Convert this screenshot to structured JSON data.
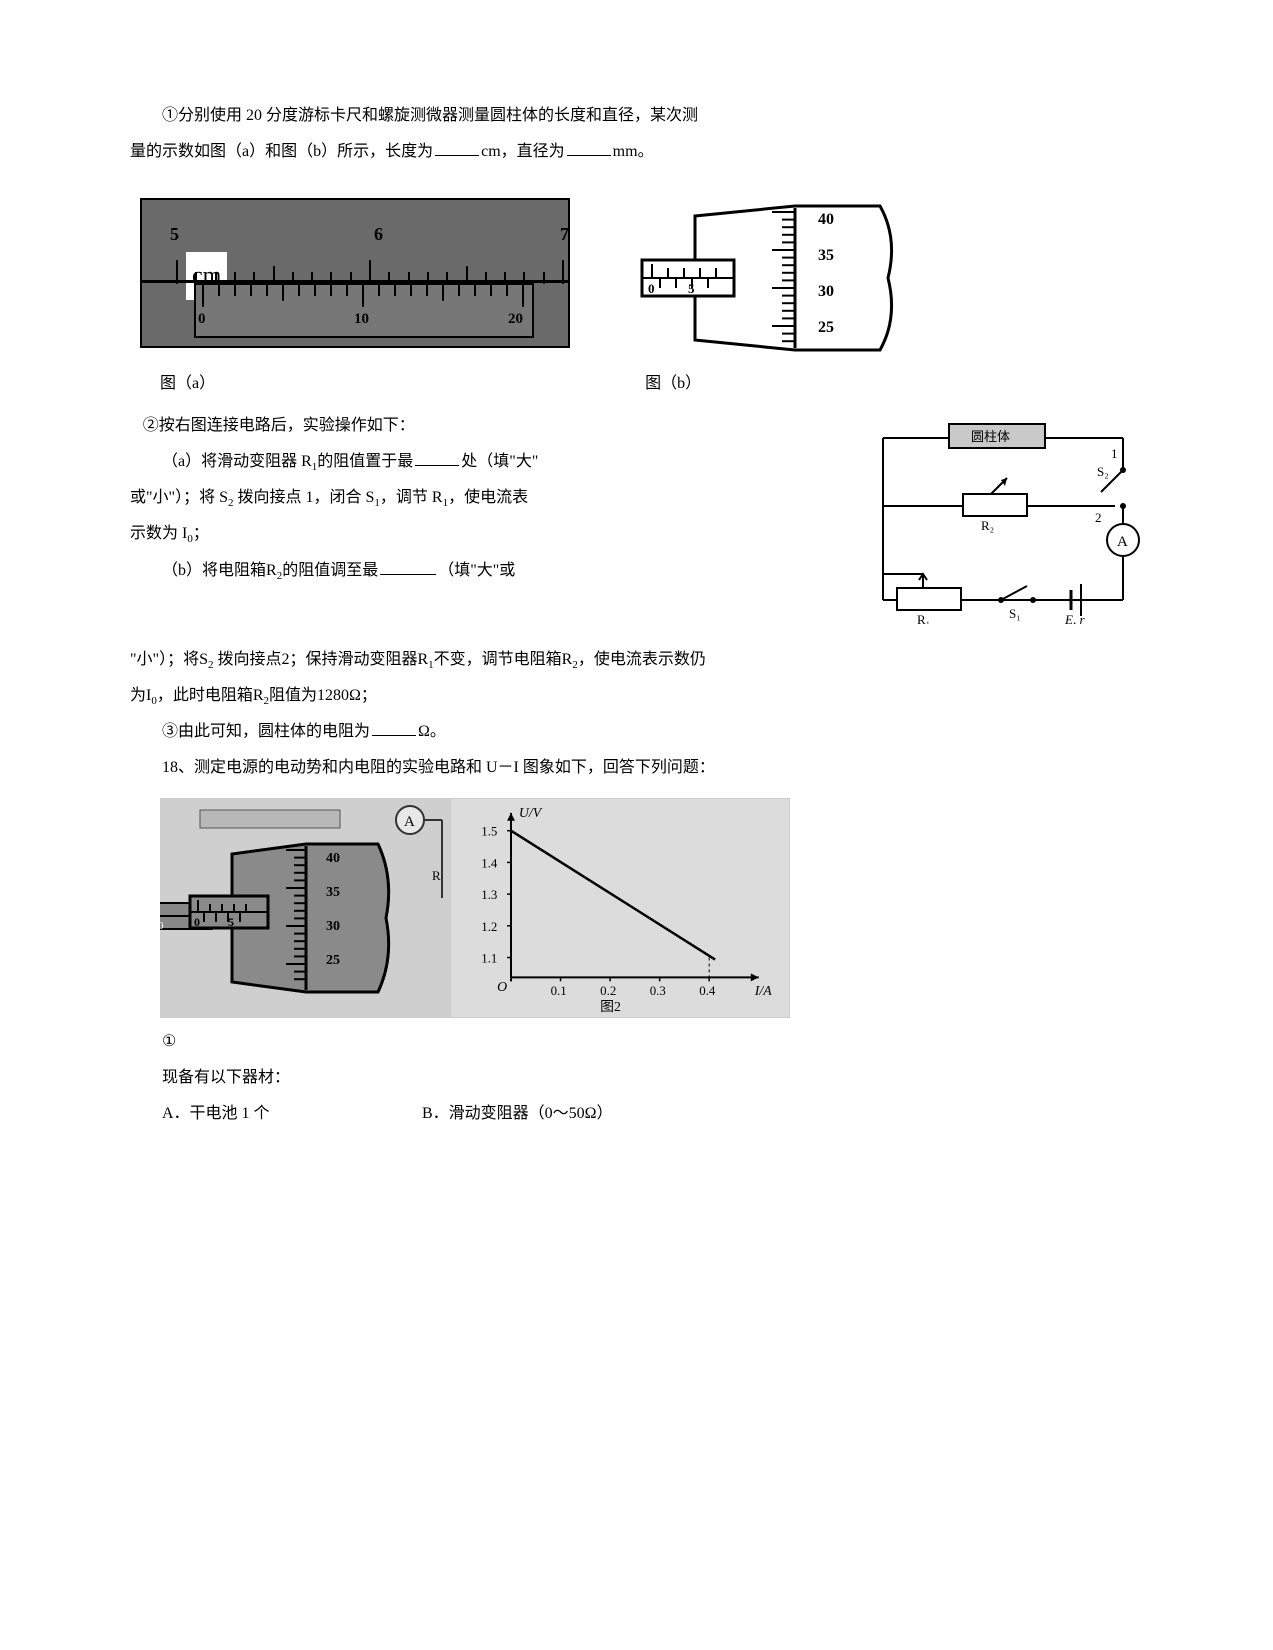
{
  "q1": {
    "line1_pre": "①分别使用 20 分度游标卡尺和螺旋测微器测量圆柱体的长度和直径，某次测",
    "line2_pre": "量的示数如图（a）和图（b）所示，长度为",
    "line2_mid": "cm，直径为",
    "line2_end": "mm。"
  },
  "fig_a": {
    "label": "图（a）",
    "cm_label": "cm",
    "main_numbers": [
      "5",
      "6",
      "7"
    ],
    "main_num_x": [
      28,
      232,
      420
    ],
    "main_tick_majors_x": [
      34,
      238,
      420
    ],
    "main_tick_minors_step": 20.4,
    "main_tick_height_major": 22,
    "main_tick_height_minor": 12,
    "vernier_numbers": [
      "0",
      "10",
      "20"
    ],
    "vernier_num_x": [
      2,
      160,
      315
    ],
    "vernier_tick_count": 21,
    "vernier_tick_step": 16,
    "vernier_tick_start": 6,
    "vernier_tick_height_major": 20,
    "vernier_tick_height_minor": 12,
    "bg": "#6a6a6a",
    "tick_color": "#000000"
  },
  "fig_b": {
    "label": "图（b）",
    "thimble_values": [
      "40",
      "35",
      "30",
      "25"
    ],
    "sleeve_major": "0",
    "sleeve_minor": "5",
    "stroke": "#000000",
    "bg": "#ffffff"
  },
  "q2": {
    "intro": "②按右图连接电路后，实验操作如下：",
    "a_pre": "（a）将滑动变阻器 R",
    "a_sub1": "1",
    "a_mid1": "的阻值置于最",
    "a_mid2": "处（填\"大\"",
    "a_line2_pre": "或\"小\"）；将 S",
    "a_sub2": "2",
    "a_line2_mid": " 拨向接点 1，闭合 S",
    "a_sub3": "1",
    "a_line2_mid2": "，调节 R",
    "a_sub4": "1",
    "a_line2_end": "，使电流表",
    "a_line3_pre": "示数为 I",
    "a_sub5": "0",
    "a_line3_end": "；",
    "b_pre": "（b）将电阻箱R",
    "b_sub1": "2",
    "b_mid1": "的阻值调至最",
    "b_mid2": "（填\"大\"或",
    "b_line2_pre": "\"小\"）；将S",
    "b_sub2": "2",
    "b_line2_mid1": " 拨向接点2；保持滑动变阻器R",
    "b_sub3": "1",
    "b_line2_mid2": "不变，调节电阻箱R",
    "b_sub4": "2",
    "b_line2_end": "，使电流表示数仍",
    "b_line3_pre": "为I",
    "b_sub5": "0",
    "b_line3_mid": "，此时电阻箱R",
    "b_sub6": "2",
    "b_line3_end": "阻值为1280Ω；"
  },
  "circuit": {
    "cylinder_label": "圆柱体",
    "node1": "1",
    "node2": "2",
    "S2": "S₂",
    "S1": "S₁",
    "R2": "R₂",
    "R1": "R₁",
    "A": "A",
    "Er": "E, r",
    "stroke": "#000000"
  },
  "q3": {
    "pre": "③由此可知，圆柱体的电阻为",
    "end": "Ω。"
  },
  "q18": {
    "intro": "18、测定电源的电动势和内电阻的实验电路和 U－I 图象如下，回答下列问题：",
    "left": {
      "A": "A",
      "R": "R",
      "thimble_values": [
        "40",
        "35",
        "30",
        "25"
      ],
      "sleeve_major": "0",
      "sleeve_minor": "5"
    },
    "graph": {
      "ylabel": "U/V",
      "xlabel": "I/A",
      "caption": "图2",
      "yticks": [
        "1.1",
        "1.2",
        "1.3",
        "1.4",
        "1.5"
      ],
      "ytick_vals": [
        1.1,
        1.2,
        1.3,
        1.4,
        1.5
      ],
      "xticks": [
        "0.1",
        "0.2",
        "0.3",
        "0.4"
      ],
      "xtick_vals": [
        0.1,
        0.2,
        0.3,
        0.4
      ],
      "origin": "O",
      "line_p1": [
        0,
        1.5
      ],
      "line_p2": [
        0.4,
        1.1
      ],
      "axis_color": "#000000",
      "bg": "#dcdcdc"
    },
    "circled1": "①",
    "items_intro": "现备有以下器材：",
    "item_a": "A．干电池 1 个",
    "item_b": "B．滑动变阻器（0～50Ω）"
  }
}
